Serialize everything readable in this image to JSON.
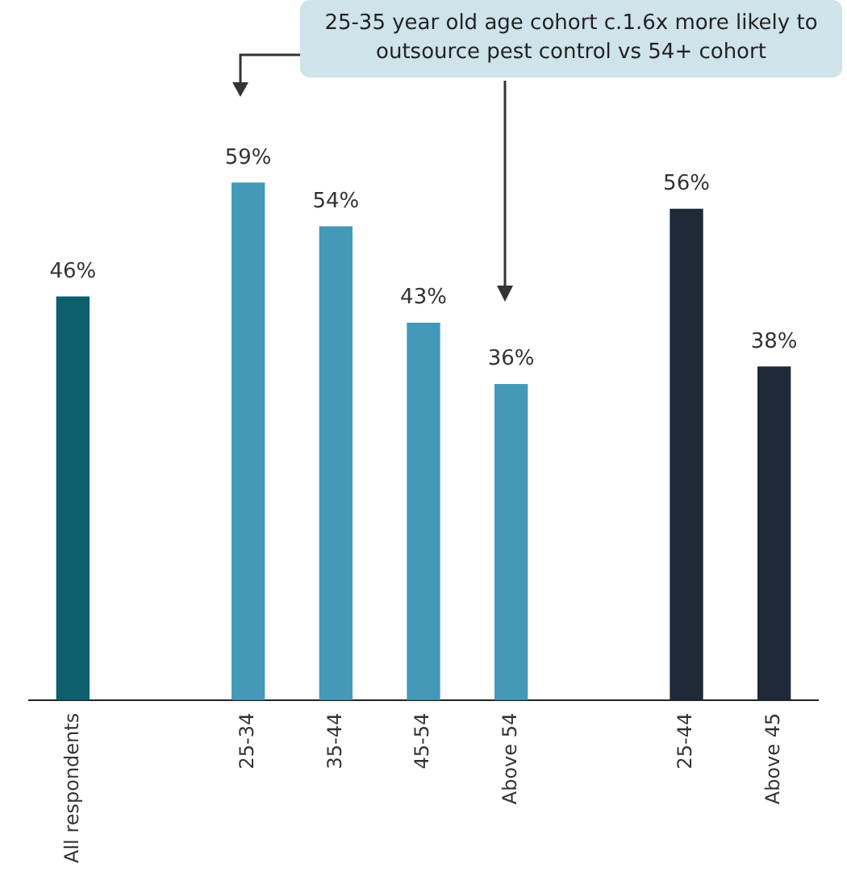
{
  "chart_data": {
    "type": "bar",
    "categories": [
      "All respondents",
      null,
      "25-34",
      "35-44",
      "45-54",
      "Above 54",
      null,
      "25-44",
      "Above 45"
    ],
    "values": [
      46,
      null,
      59,
      54,
      43,
      36,
      null,
      56,
      38
    ],
    "colors": [
      "#0d5f6d",
      "#4499b8",
      "#4499b8",
      "#4499b8",
      "#4499b8",
      "#4499b8",
      "#1e2a38",
      "#1e2a38",
      "#1e2a38"
    ],
    "value_labels": [
      "46%",
      null,
      "59%",
      "54%",
      "43%",
      "36%",
      null,
      "56%",
      "38%"
    ],
    "annotations": [
      "25-35 year old age cohort c.1.6x more likely to outsource pest control vs 54+ cohort"
    ],
    "grid": false,
    "legend": false
  }
}
